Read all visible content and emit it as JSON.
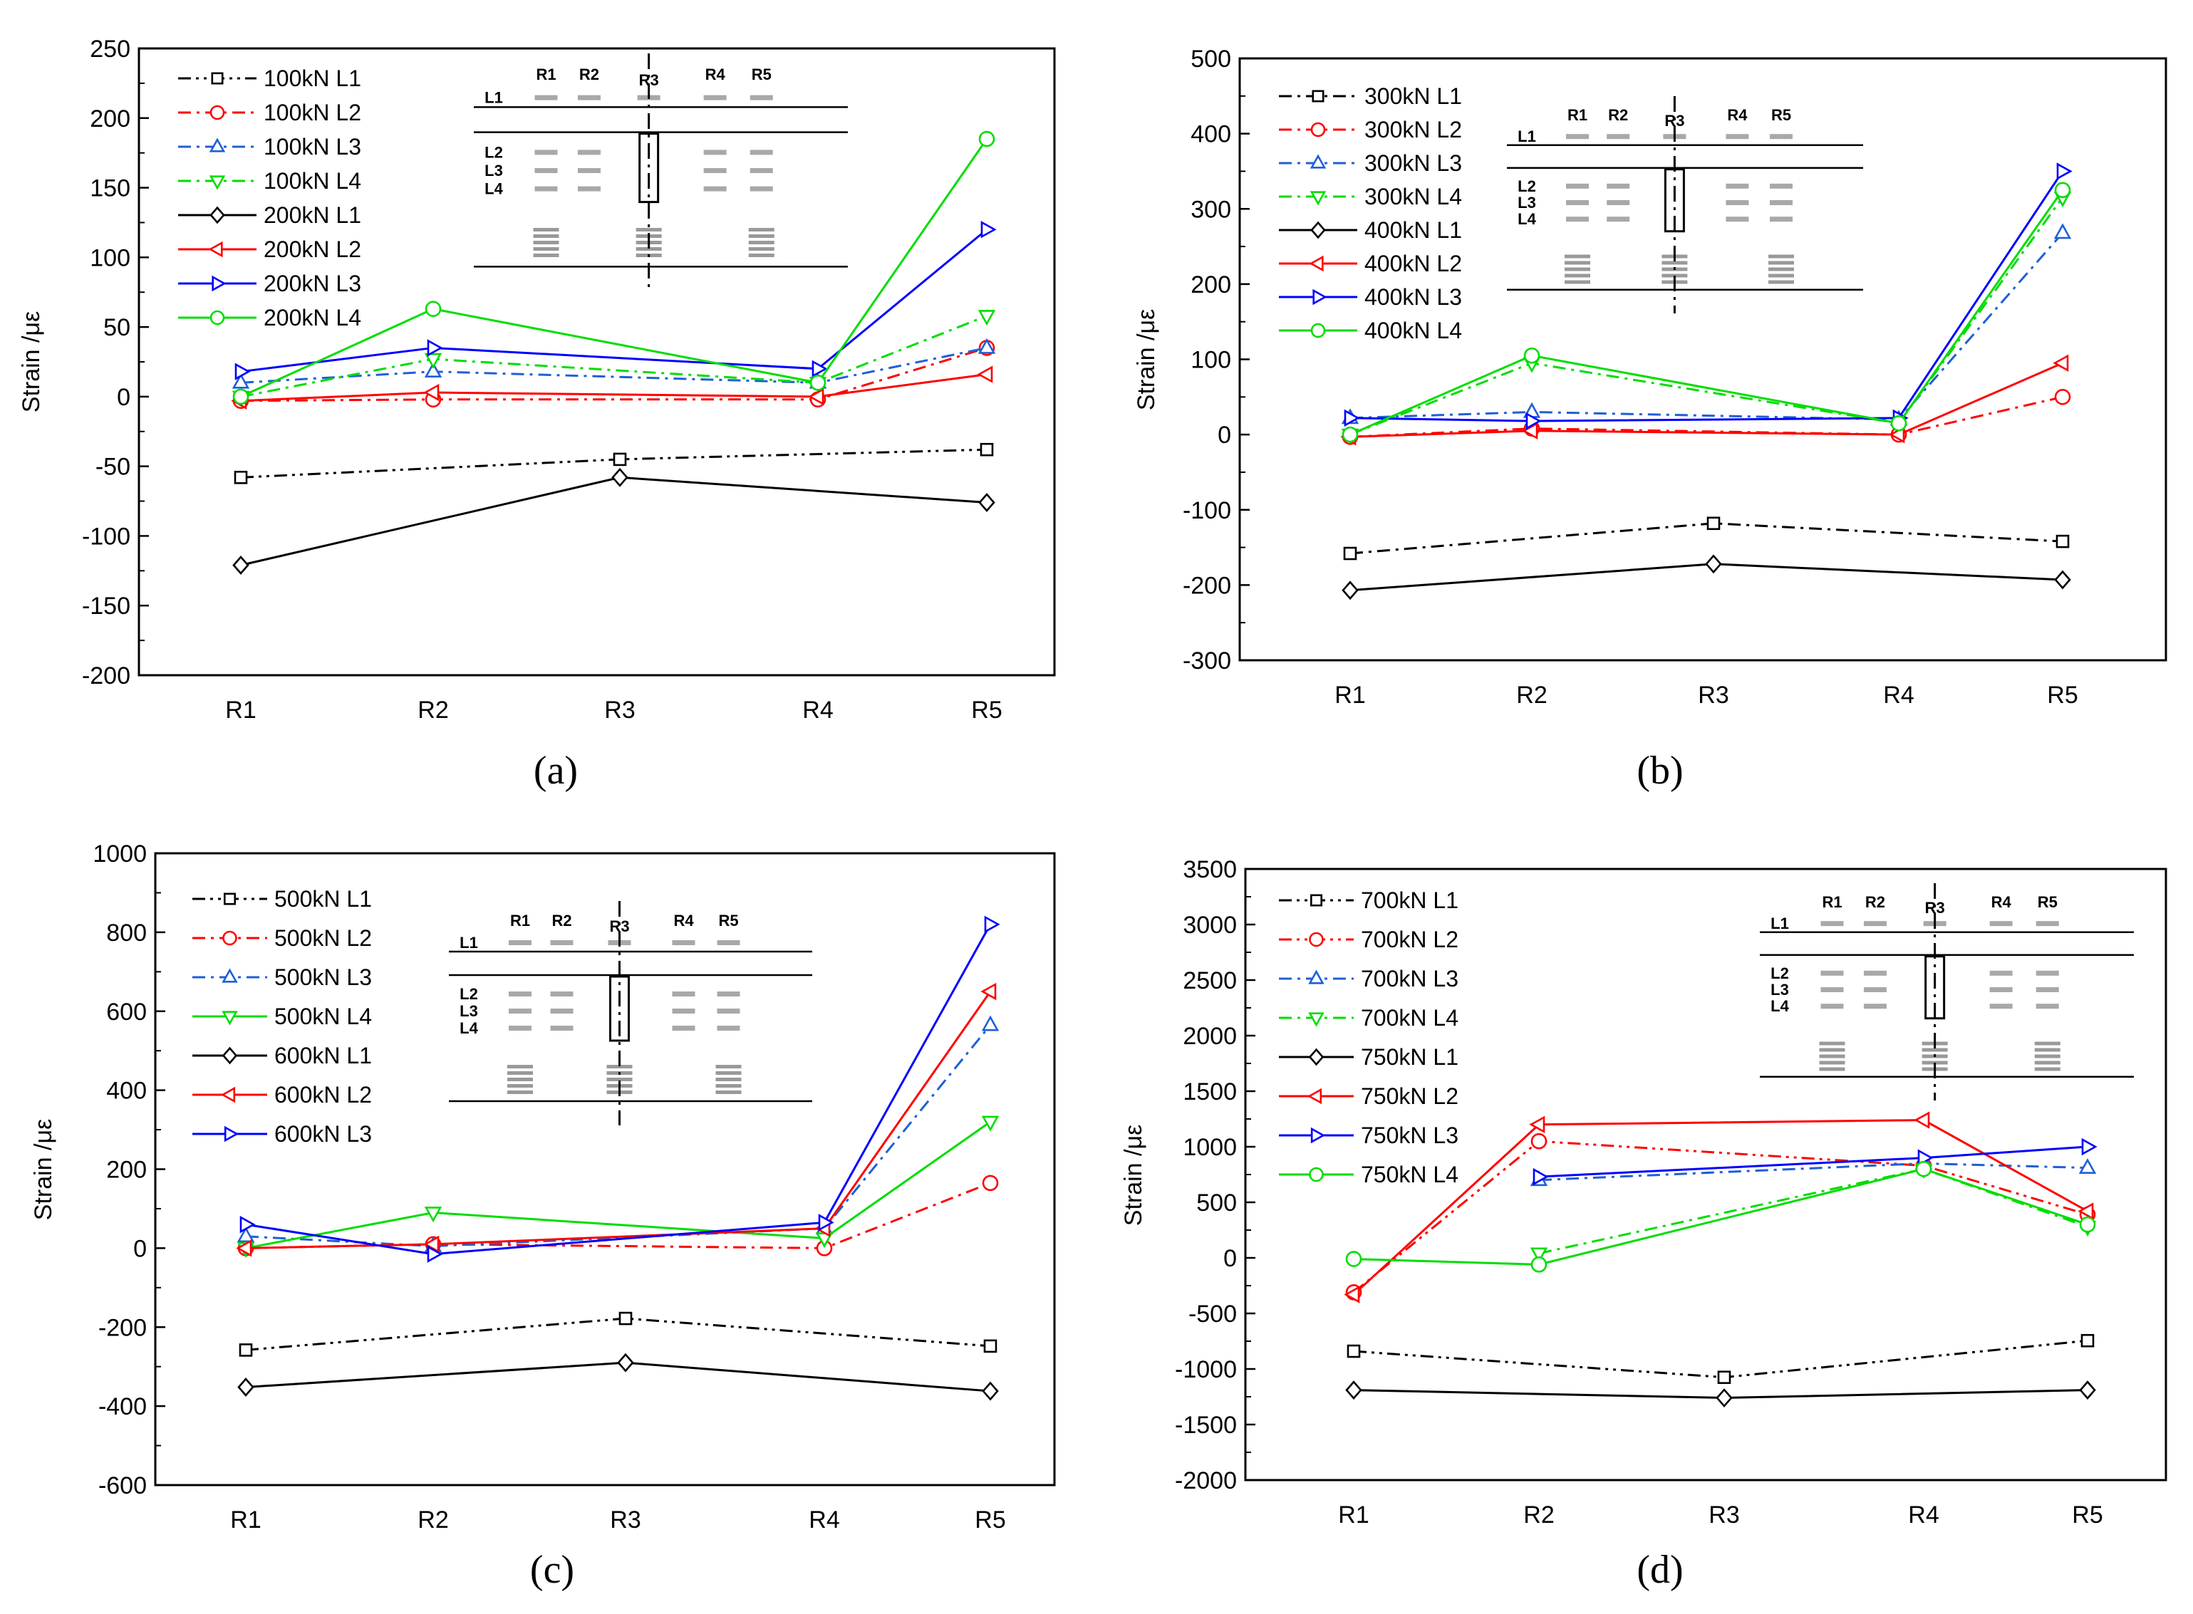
{
  "chart_data": [
    {
      "type": "line",
      "panel_label": "(a)",
      "ylabel": "Strain /με",
      "ylim": [
        -200,
        250
      ],
      "yticks": [
        "250",
        "200",
        "150",
        "100",
        "50",
        "0",
        "-50",
        "-100",
        "-150",
        "-200"
      ],
      "categories": [
        "R1",
        "R2",
        "R3",
        "R4",
        "R5"
      ],
      "series": [
        {
          "name": "100kN L1",
          "values": [
            -58,
            null,
            -45,
            null,
            -38
          ],
          "color": "#000000",
          "marker": "square",
          "dash": "dashdotdot"
        },
        {
          "name": "100kN L2",
          "values": [
            -3,
            -2,
            null,
            -2,
            35
          ],
          "color": "#ff0000",
          "marker": "circle",
          "dash": "dashdot"
        },
        {
          "name": "100kN L3",
          "values": [
            10,
            18,
            null,
            10,
            35
          ],
          "color": "#1f5fd6",
          "marker": "triangle-up",
          "dash": "dashdot"
        },
        {
          "name": "100kN L4",
          "values": [
            0,
            27,
            null,
            10,
            58
          ],
          "color": "#00dd00",
          "marker": "triangle-down",
          "dash": "dashdot"
        },
        {
          "name": "200kN L1",
          "values": [
            -121,
            null,
            -58,
            null,
            -76
          ],
          "color": "#000000",
          "marker": "diamond",
          "dash": "solid"
        },
        {
          "name": "200kN L2",
          "values": [
            -3,
            3,
            null,
            0,
            16
          ],
          "color": "#ff0000",
          "marker": "triangle-left",
          "dash": "solid"
        },
        {
          "name": "200kN L3",
          "values": [
            18,
            35,
            null,
            20,
            120
          ],
          "color": "#0000ff",
          "marker": "triangle-right",
          "dash": "solid"
        },
        {
          "name": "200kN L4",
          "values": [
            0,
            63,
            null,
            10,
            185
          ],
          "color": "#00dd00",
          "marker": "circle",
          "dash": "solid"
        }
      ],
      "inset_labels": {
        "cols": [
          "R1",
          "R2",
          "R3",
          "R4",
          "R5"
        ],
        "rows": [
          "L1",
          "L2",
          "L3",
          "L4"
        ]
      }
    },
    {
      "type": "line",
      "panel_label": "(b)",
      "ylabel": "Strain /με",
      "ylim": [
        -300,
        500
      ],
      "yticks": [
        "500",
        "400",
        "300",
        "200",
        "100",
        "0",
        "-100",
        "-200",
        "-300"
      ],
      "categories": [
        "R1",
        "R2",
        "R3",
        "R4",
        "R5"
      ],
      "series": [
        {
          "name": "300kN L1",
          "values": [
            -158,
            null,
            -118,
            null,
            -142
          ],
          "color": "#000000",
          "marker": "square",
          "dash": "dashdot"
        },
        {
          "name": "300kN L2",
          "values": [
            -3,
            8,
            null,
            0,
            50
          ],
          "color": "#ff0000",
          "marker": "circle",
          "dash": "dashdot"
        },
        {
          "name": "300kN L3",
          "values": [
            22,
            30,
            null,
            20,
            268
          ],
          "color": "#1f5fd6",
          "marker": "triangle-up",
          "dash": "dashdot"
        },
        {
          "name": "300kN L4",
          "values": [
            0,
            95,
            null,
            15,
            315
          ],
          "color": "#00dd00",
          "marker": "triangle-down",
          "dash": "dashdot"
        },
        {
          "name": "400kN L1",
          "values": [
            -207,
            null,
            -172,
            null,
            -193
          ],
          "color": "#000000",
          "marker": "diamond",
          "dash": "solid"
        },
        {
          "name": "400kN L2",
          "values": [
            -3,
            5,
            null,
            0,
            95
          ],
          "color": "#ff0000",
          "marker": "triangle-left",
          "dash": "solid"
        },
        {
          "name": "400kN L3",
          "values": [
            22,
            18,
            null,
            22,
            350
          ],
          "color": "#0000ff",
          "marker": "triangle-right",
          "dash": "solid"
        },
        {
          "name": "400kN L4",
          "values": [
            0,
            105,
            null,
            15,
            325
          ],
          "color": "#00dd00",
          "marker": "circle",
          "dash": "solid"
        }
      ],
      "inset_labels": {
        "cols": [
          "R1",
          "R2",
          "R3",
          "R4",
          "R5"
        ],
        "rows": [
          "L1",
          "L2",
          "L3",
          "L4"
        ]
      }
    },
    {
      "type": "line",
      "panel_label": "(c)",
      "ylabel": "Strain /με",
      "ylim": [
        -600,
        1000
      ],
      "yticks": [
        "1000",
        "800",
        "600",
        "400",
        "200",
        "0",
        "-200",
        "-400",
        "-600"
      ],
      "categories": [
        "R1",
        "R2",
        "R3",
        "R4",
        "R5"
      ],
      "series": [
        {
          "name": "500kN L1",
          "values": [
            -258,
            null,
            -178,
            null,
            -248
          ],
          "color": "#000000",
          "marker": "square",
          "dash": "dashdotdot"
        },
        {
          "name": "500kN L2",
          "values": [
            0,
            10,
            null,
            0,
            165
          ],
          "color": "#ff0000",
          "marker": "circle",
          "dash": "dashdot"
        },
        {
          "name": "500kN L3",
          "values": [
            30,
            5,
            null,
            50,
            565
          ],
          "color": "#1f5fd6",
          "marker": "triangle-up",
          "dash": "dashdot"
        },
        {
          "name": "500kN L4",
          "values": [
            0,
            90,
            null,
            25,
            320
          ],
          "color": "#00dd00",
          "marker": "triangle-down",
          "dash": "solid"
        },
        {
          "name": "600kN L1",
          "values": [
            -352,
            null,
            -290,
            null,
            -362
          ],
          "color": "#000000",
          "marker": "diamond",
          "dash": "solid"
        },
        {
          "name": "600kN L2",
          "values": [
            0,
            10,
            null,
            50,
            650
          ],
          "color": "#ff0000",
          "marker": "triangle-left",
          "dash": "solid"
        },
        {
          "name": "600kN L3",
          "values": [
            60,
            -15,
            null,
            65,
            820
          ],
          "color": "#0000ff",
          "marker": "triangle-right",
          "dash": "solid"
        }
      ],
      "inset_labels": {
        "cols": [
          "R1",
          "R2",
          "R3",
          "R4",
          "R5"
        ],
        "rows": [
          "L1",
          "L2",
          "L3",
          "L4"
        ]
      }
    },
    {
      "type": "line",
      "panel_label": "(d)",
      "ylabel": "Strain /με",
      "ylim": [
        -2000,
        3500
      ],
      "yticks": [
        "3500",
        "3000",
        "2500",
        "2000",
        "1500",
        "1000",
        "500",
        "0",
        "-500",
        "-1000",
        "-1500",
        "-2000"
      ],
      "categories": [
        "R1",
        "R2",
        "R3",
        "R4",
        "R5"
      ],
      "series": [
        {
          "name": "700kN L1",
          "values": [
            -840,
            null,
            -1075,
            null,
            -745
          ],
          "color": "#000000",
          "marker": "square",
          "dash": "dashdotdot"
        },
        {
          "name": "700kN L2",
          "values": [
            -310,
            1050,
            null,
            830,
            390
          ],
          "color": "#ff0000",
          "marker": "circle",
          "dash": "dashdotdot"
        },
        {
          "name": "700kN L3",
          "values": [
            null,
            700,
            null,
            850,
            810
          ],
          "color": "#1f5fd6",
          "marker": "triangle-up",
          "dash": "dashdot"
        },
        {
          "name": "700kN L4",
          "values": [
            null,
            40,
            null,
            800,
            280
          ],
          "color": "#00dd00",
          "marker": "triangle-down",
          "dash": "dashdot"
        },
        {
          "name": "750kN L1",
          "values": [
            -1190,
            null,
            -1260,
            null,
            -1190
          ],
          "color": "#000000",
          "marker": "diamond",
          "dash": "solid"
        },
        {
          "name": "750kN L2",
          "values": [
            -330,
            1200,
            null,
            1240,
            420
          ],
          "color": "#ff0000",
          "marker": "triangle-left",
          "dash": "solid"
        },
        {
          "name": "750kN L3",
          "values": [
            null,
            730,
            null,
            900,
            1000
          ],
          "color": "#0000ff",
          "marker": "triangle-right",
          "dash": "solid"
        },
        {
          "name": "750kN L4",
          "values": [
            -10,
            -60,
            null,
            800,
            300
          ],
          "color": "#00dd00",
          "marker": "circle",
          "dash": "solid"
        }
      ],
      "inset_labels": {
        "cols": [
          "R1",
          "R2",
          "R3",
          "R4",
          "R5"
        ],
        "rows": [
          "L1",
          "L2",
          "L3",
          "L4"
        ]
      }
    }
  ]
}
